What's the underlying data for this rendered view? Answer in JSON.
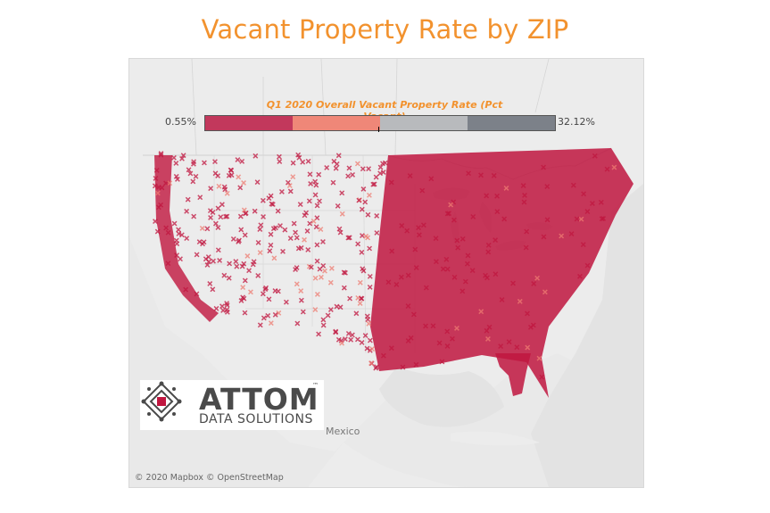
{
  "title": "Vacant Property Rate by ZIP",
  "legend": {
    "title": "Q1 2020 Overall Vacant Property Rate (Pct Vacant)",
    "min_label": "0.55%",
    "max_label": "32.12%",
    "min_value": 0.55,
    "max_value": 32.12,
    "colors": [
      "#c2385c",
      "#ef8778",
      "#b8babd",
      "#7c8189"
    ]
  },
  "map": {
    "labels": [
      {
        "name": "mexico-label",
        "text": "Mexico"
      }
    ],
    "attribution": "© 2020 Mapbox © OpenStreetMap",
    "marker_color_dense": "#c0163f",
    "marker_color_light": "#ee7c72"
  },
  "logo": {
    "word": "ATTOM",
    "tm": "™",
    "sub": "DATA SOLUTIONS",
    "accent": "#c0163f"
  }
}
